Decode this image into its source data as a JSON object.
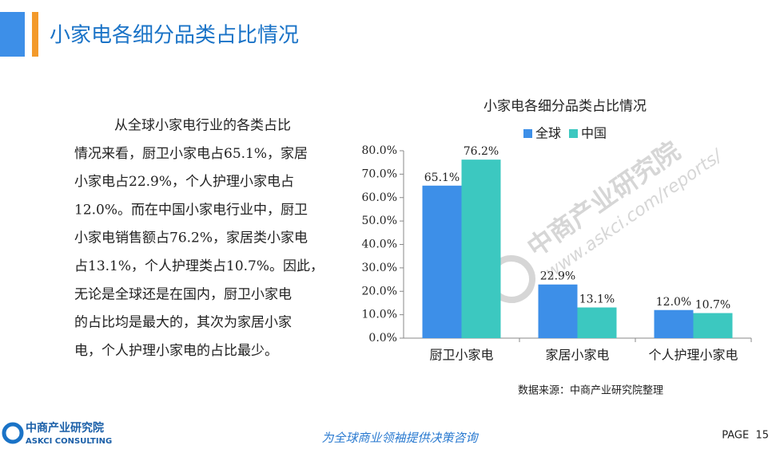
{
  "header": {
    "title": "小家电各细分品类占比情况"
  },
  "paragraph": [
    "从全球小家电行业的各类占比",
    "情况来看，厨卫小家电占65.1%，家居",
    "小家电占22.9%，个人护理小家电占",
    "12.0%。而在中国小家电行业中，厨卫",
    "小家电销售额占76.2%，家居类小家电",
    "占13.1%，个人护理类占10.7%。因此，",
    "无论是全球还是在国内，厨卫小家电",
    "的占比均是最大的，其次为家居小家",
    "电，个人护理小家电的占比最少。"
  ],
  "chart_data": {
    "type": "bar",
    "title": "小家电各细分品类占比情况",
    "categories": [
      "厨卫小家电",
      "家居小家电",
      "个人护理小家电"
    ],
    "series": [
      {
        "name": "全球",
        "color": "#3d8fe8",
        "values": [
          65.1,
          22.9,
          12.0
        ],
        "value_labels": [
          "65.1%",
          "22.9%",
          "12.0%"
        ]
      },
      {
        "name": "中国",
        "color": "#3cc8c0",
        "values": [
          76.2,
          13.1,
          10.7
        ],
        "value_labels": [
          "76.2%",
          "13.1%",
          "10.7%"
        ]
      }
    ],
    "ylim": [
      0,
      80
    ],
    "yticks": [
      {
        "value": 0,
        "label": "0.0%"
      },
      {
        "value": 10,
        "label": "10.0%"
      },
      {
        "value": 20,
        "label": "20.0%"
      },
      {
        "value": 30,
        "label": "30.0%"
      },
      {
        "value": 40,
        "label": "40.0%"
      },
      {
        "value": 50,
        "label": "50.0%"
      },
      {
        "value": 60,
        "label": "60.0%"
      },
      {
        "value": 70,
        "label": "70.0%"
      },
      {
        "value": 80,
        "label": "80.0%"
      }
    ],
    "legend": "top"
  },
  "source": "数据来源：中商产业研究院整理",
  "watermark": {
    "name": "中商产业研究院",
    "url": "www.askci.com/reports/"
  },
  "footer": {
    "logo_cn": "中商产业研究院",
    "logo_en": "ASKCI CONSULTING",
    "slogan": "为全球商业领袖提供决策咨询",
    "page": "PAGE  15"
  }
}
